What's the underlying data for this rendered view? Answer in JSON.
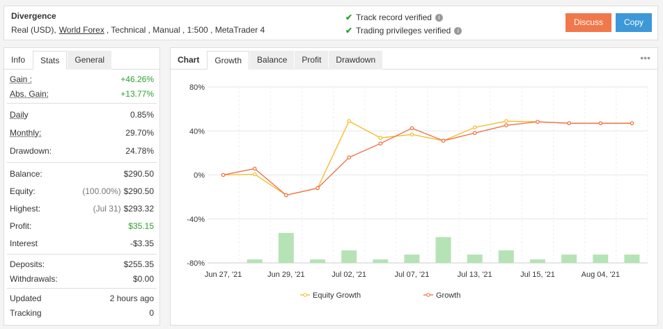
{
  "header": {
    "title": "Divergence",
    "account": {
      "prefix": "Real (USD),",
      "link": "World Forex",
      "suffix": ", Technical , Manual , 1:500 , MetaTrader 4"
    },
    "verified": [
      "Track record verified",
      "Trading privileges verified"
    ],
    "buttons": [
      {
        "label": "Discuss",
        "color": "#f0784b"
      },
      {
        "label": "Copy",
        "color": "#3c98d8"
      }
    ]
  },
  "stats_panel": {
    "tabs": [
      "Info",
      "Stats",
      "General"
    ],
    "active_tab": 1,
    "groups": [
      [
        {
          "label": "Gain :",
          "value": "+46.26%",
          "color": "#2ca02c",
          "underline": true
        },
        {
          "label": "Abs. Gain:",
          "value": "+13.77%",
          "color": "#2ca02c",
          "underline": true
        }
      ],
      [
        {
          "label": "Daily",
          "value": "0.85%",
          "underline": true
        },
        {
          "label": "Monthly:",
          "value": "29.70%",
          "underline": true
        },
        {
          "label": "Drawdown:",
          "value": "24.78%"
        }
      ],
      [
        {
          "label": "Balance:",
          "value": "$290.50"
        },
        {
          "label": "Equity:",
          "note": "(100.00%)",
          "value": "$290.50"
        },
        {
          "label": "Highest:",
          "note": "(Jul 31)",
          "value": "$293.32"
        },
        {
          "label": "Profit:",
          "value": "$35.15",
          "color": "#2ca02c"
        },
        {
          "label": "Interest",
          "value": "-$3.35"
        }
      ],
      [
        {
          "label": "Deposits:",
          "value": "$255.35"
        },
        {
          "label": "Withdrawals:",
          "value": "$0.00"
        }
      ],
      [
        {
          "label": "Updated",
          "value": "2 hours ago"
        },
        {
          "label": "Tracking",
          "value": "0"
        }
      ]
    ]
  },
  "chart_panel": {
    "label": "Chart",
    "tabs": [
      "Growth",
      "Balance",
      "Profit",
      "Drawdown"
    ],
    "active_tab": 0,
    "menu": "•••"
  },
  "chart_data": {
    "type": "line",
    "categories": [
      "Jun 27, '21",
      null,
      "Jun 29, '21",
      null,
      "Jul 02, '21",
      null,
      "Jul 07, '21",
      null,
      "Jul 13, '21",
      null,
      "Jul 15, '21",
      null,
      "Aug 04, '21",
      null
    ],
    "series": [
      {
        "name": "Equity Growth",
        "color": "#f5b921",
        "values": [
          0,
          0.6,
          -18.4,
          -12,
          48.9,
          33.7,
          36.8,
          31.1,
          43.2,
          48.9,
          48.3,
          47,
          47,
          47
        ]
      },
      {
        "name": "Growth",
        "color": "#ee6a3f",
        "values": [
          0,
          5.7,
          -18.4,
          -12,
          15.9,
          28.6,
          42.5,
          31.1,
          38.1,
          45.1,
          48.3,
          47,
          47,
          47
        ]
      }
    ],
    "bars": {
      "color": "#b5e3b5",
      "values": [
        null,
        -76.8,
        -52.7,
        -76.8,
        -68.6,
        -76.8,
        -72.4,
        -56.5,
        -72.4,
        -68.6,
        -76.8,
        -72.4,
        -72.4,
        -72.4
      ]
    },
    "ylim": [
      -80,
      80
    ],
    "yticks": [
      {
        "value": 80,
        "label": "80%"
      },
      {
        "value": 40,
        "label": "40%"
      },
      {
        "value": 0,
        "label": "0%"
      },
      {
        "value": -40,
        "label": "-40%"
      },
      {
        "value": -80,
        "label": "-80%"
      }
    ],
    "grid": true
  }
}
